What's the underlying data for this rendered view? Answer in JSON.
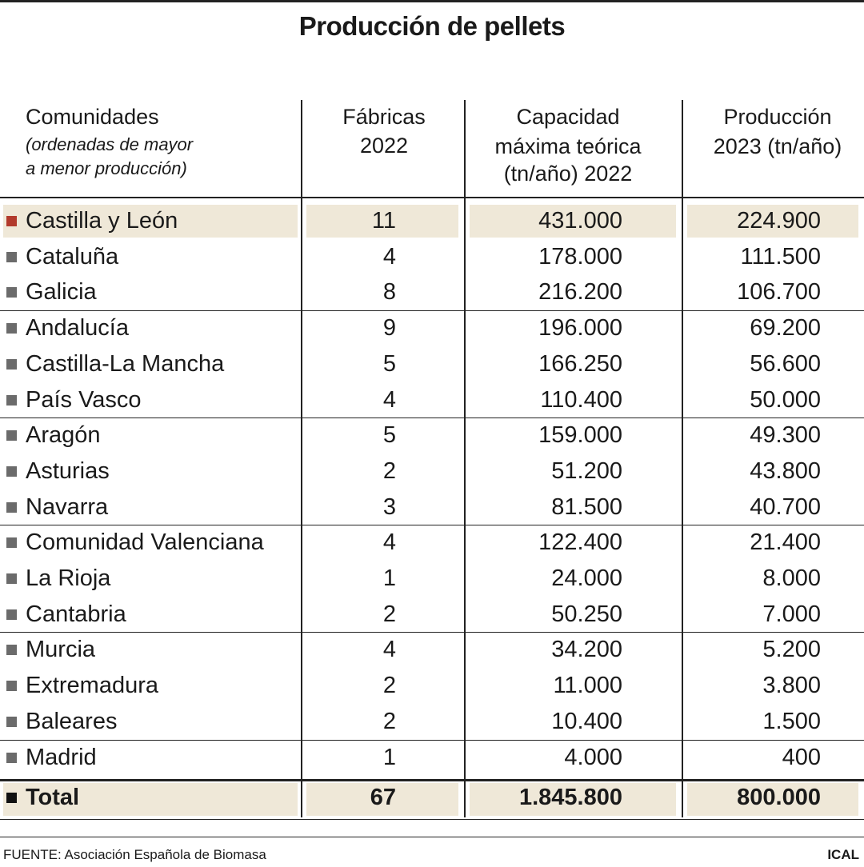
{
  "title": "Producción de pellets",
  "table": {
    "columns": [
      [
        "Comunidades",
        "(ordenadas de mayor",
        "a menor producción)"
      ],
      [
        "Fábricas",
        "2022"
      ],
      [
        "Capacidad",
        "máxima teórica",
        "(tn/año) 2022"
      ],
      [
        "Producción",
        "2023 (tn/año)"
      ]
    ],
    "rows": [
      [
        "Castilla y León",
        "11",
        "431.000",
        "224.900"
      ],
      [
        "Cataluña",
        "4",
        "178.000",
        "111.500"
      ],
      [
        "Galicia",
        "8",
        "216.200",
        "106.700"
      ],
      [
        "Andalucía",
        "9",
        "196.000",
        "69.200"
      ],
      [
        "Castilla-La Mancha",
        "5",
        "166.250",
        "56.600"
      ],
      [
        "País Vasco",
        "4",
        "110.400",
        "50.000"
      ],
      [
        "Aragón",
        "5",
        "159.000",
        "49.300"
      ],
      [
        "Asturias",
        "2",
        "51.200",
        "43.800"
      ],
      [
        "Navarra",
        "3",
        "81.500",
        "40.700"
      ],
      [
        "Comunidad Valenciana",
        "4",
        "122.400",
        "21.400"
      ],
      [
        "La Rioja",
        "1",
        "24.000",
        "8.000"
      ],
      [
        "Cantabria",
        "2",
        "50.250",
        "7.000"
      ],
      [
        "Murcia",
        "4",
        "34.200",
        "5.200"
      ],
      [
        "Extremadura",
        "2",
        "11.000",
        "3.800"
      ],
      [
        "Baleares",
        "2",
        "10.400",
        "1.500"
      ],
      [
        "Madrid",
        "1",
        "4.000",
        "400"
      ]
    ],
    "total": [
      "Total",
      "67",
      "1.845.800",
      "800.000"
    ]
  },
  "footer": {
    "source": "FUENTE: Asociación Española de Biomasa",
    "credit": "ICAL"
  }
}
